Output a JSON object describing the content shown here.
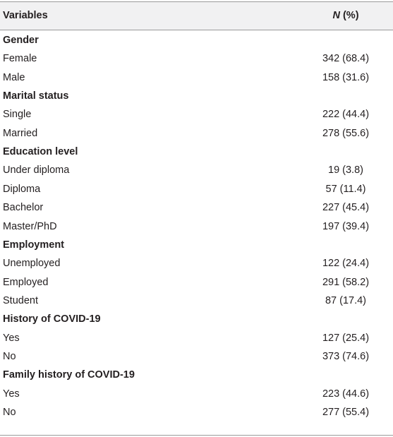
{
  "table": {
    "header": {
      "variable": "Variables",
      "value_symbol": "N",
      "value_unit": "(%)"
    },
    "sections": [
      {
        "title": "Gender",
        "rows": [
          [
            "Female",
            "342 (68.4)"
          ],
          [
            "Male",
            "158 (31.6)"
          ]
        ]
      },
      {
        "title": "Marital status",
        "rows": [
          [
            "Single",
            "222 (44.4)"
          ],
          [
            "Married",
            "278 (55.6)"
          ]
        ]
      },
      {
        "title": "Education level",
        "rows": [
          [
            "Under diploma",
            "19 (3.8)"
          ],
          [
            "Diploma",
            "57 (11.4)"
          ],
          [
            "Bachelor",
            "227 (45.4)"
          ],
          [
            "Master/PhD",
            "197 (39.4)"
          ]
        ]
      },
      {
        "title": "Employment",
        "rows": [
          [
            "Unemployed",
            "122 (24.4)"
          ],
          [
            "Employed",
            "291 (58.2)"
          ],
          [
            "Student",
            "87 (17.4)"
          ]
        ]
      },
      {
        "title": "History of COVID-19",
        "rows": [
          [
            "Yes",
            "127 (25.4)"
          ],
          [
            "No",
            "373 (74.6)"
          ]
        ]
      },
      {
        "title": "Family history of COVID-19",
        "rows": [
          [
            "Yes",
            "223 (44.6)"
          ],
          [
            "No",
            "277 (55.4)"
          ]
        ]
      }
    ]
  }
}
